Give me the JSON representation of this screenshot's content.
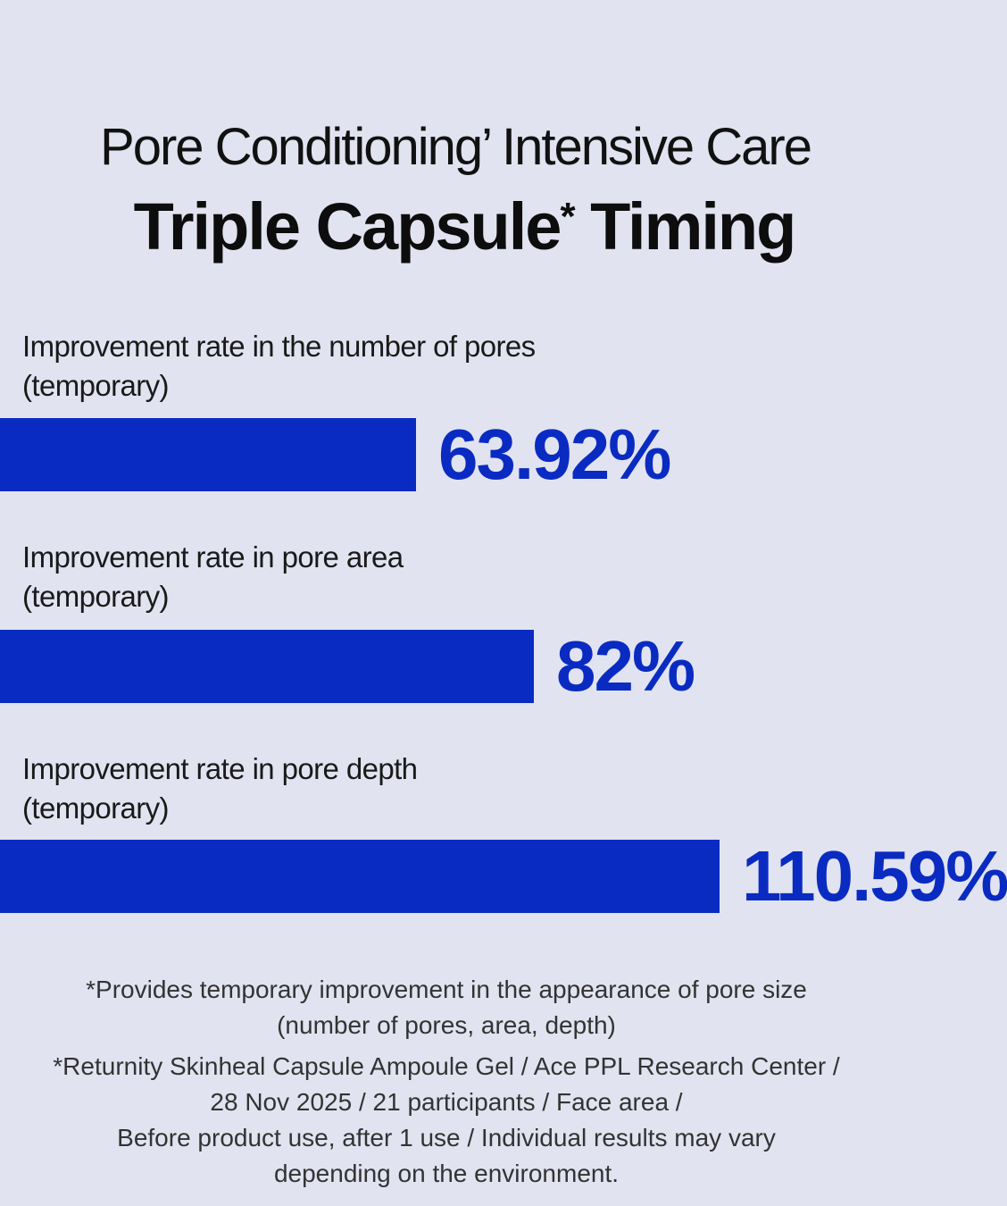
{
  "header": {
    "title_line1": "Pore Conditioning’ Intensive Care",
    "title_line2_main": "Triple Capsule",
    "title_line2_mark": "*",
    "title_line2_end": " Timing"
  },
  "colors": {
    "background": "#e1e3f0",
    "bar": "#0a2bc2",
    "value_text": "#0a2bc2",
    "title_text": "#111111"
  },
  "chart_data": {
    "type": "bar",
    "orientation": "horizontal",
    "categories": [
      {
        "line1": "Improvement rate in the number of pores",
        "line2": "(temporary)"
      },
      {
        "line1": "Improvement rate in pore area",
        "line2": "(temporary)"
      },
      {
        "line1": "Improvement rate in pore depth",
        "line2": "(temporary)"
      }
    ],
    "values": [
      63.92,
      82,
      110.59
    ],
    "value_labels": [
      "63.92%",
      "82%",
      "110.59%"
    ],
    "unit": "%"
  },
  "footnotes": {
    "note1": [
      "*Provides temporary improvement in the appearance of pore size",
      "(number of pores, area, depth)"
    ],
    "note2": [
      "*Returnity Skinheal Capsule Ampoule Gel / Ace PPL Research Center /",
      "28 Nov 2025 / 21 participants / Face area /",
      "Before product use, after 1 use / Individual results may vary",
      "depending on the environment."
    ]
  }
}
